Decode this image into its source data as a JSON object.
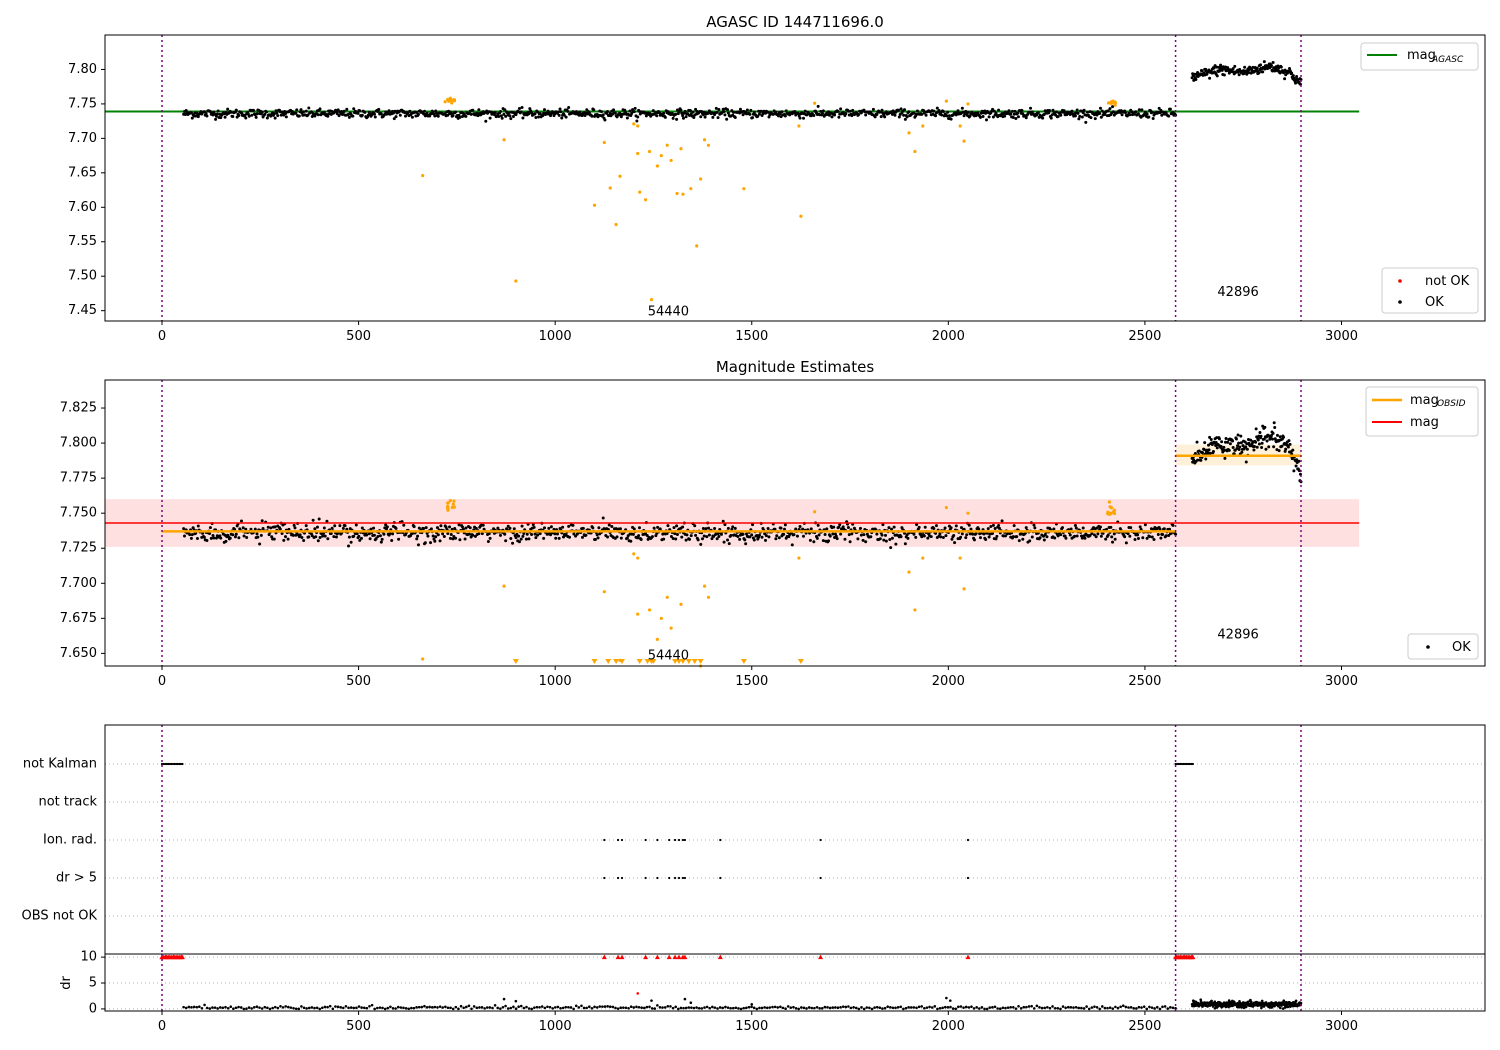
{
  "colors": {
    "ok": "#000000",
    "not_ok": "#ff0000",
    "excluded": "#ffa500",
    "mag_agasc": "#008000",
    "mag_obsid": "#ffa500",
    "mag": "#ff0000",
    "obsid_divider": "#800080",
    "band_mag": "#ffe0e0",
    "band_obsid": "#fff0d9"
  },
  "chart_data": [
    {
      "type": "scatter",
      "title": "AGASC ID 144711696.0",
      "xlim": [
        -145,
        3365
      ],
      "ylim": [
        7.435,
        7.85
      ],
      "xticks": [
        "0",
        "500",
        "1000",
        "1500",
        "2000",
        "2500",
        "3000"
      ],
      "xtick_values": [
        0,
        500,
        1000,
        1500,
        2000,
        2500,
        3000
      ],
      "yticks": [
        "7.45",
        "7.50",
        "7.55",
        "7.60",
        "7.65",
        "7.70",
        "7.75",
        "7.80"
      ],
      "ytick_values": [
        7.45,
        7.5,
        7.55,
        7.6,
        7.65,
        7.7,
        7.75,
        7.8
      ],
      "obsid_boundaries": [
        0,
        2578,
        2897
      ],
      "obsid_labels": [
        {
          "text": "54440",
          "x": 1288,
          "y": 7.448
        },
        {
          "text": "42896",
          "x": 2737,
          "y": 7.476
        }
      ],
      "mag_agasc_line": {
        "value": 7.739,
        "x_range": [
          -145,
          3045
        ]
      },
      "ok_segments": [
        {
          "x_range": [
            55,
            2578
          ],
          "level": 7.736,
          "scatter": 0.004,
          "n": 1150
        },
        {
          "x_range": [
            2620,
            2897
          ],
          "levels": [
            [
              2620,
              7.788
            ],
            [
              2690,
              7.8
            ],
            [
              2750,
              7.796
            ],
            [
              2820,
              7.805
            ],
            [
              2870,
              7.795
            ],
            [
              2897,
              7.778
            ]
          ],
          "scatter": 0.005,
          "n": 200
        }
      ],
      "ok_bumps": [
        {
          "x_range": [
            720,
            745
          ],
          "level": 7.755
        },
        {
          "x_range": [
            2405,
            2425
          ],
          "level": 7.752
        }
      ],
      "excluded_points": [
        {
          "x": 663,
          "y": 7.646
        },
        {
          "x": 870,
          "y": 7.698
        },
        {
          "x": 900,
          "y": 7.493
        },
        {
          "x": 1100,
          "y": 7.603
        },
        {
          "x": 1125,
          "y": 7.694
        },
        {
          "x": 1140,
          "y": 7.628
        },
        {
          "x": 1155,
          "y": 7.575
        },
        {
          "x": 1165,
          "y": 7.645
        },
        {
          "x": 1200,
          "y": 7.721
        },
        {
          "x": 1210,
          "y": 7.678
        },
        {
          "x": 1215,
          "y": 7.622
        },
        {
          "x": 1230,
          "y": 7.611
        },
        {
          "x": 1240,
          "y": 7.681
        },
        {
          "x": 1245,
          "y": 7.466
        },
        {
          "x": 1260,
          "y": 7.66
        },
        {
          "x": 1270,
          "y": 7.675
        },
        {
          "x": 1285,
          "y": 7.69
        },
        {
          "x": 1295,
          "y": 7.668
        },
        {
          "x": 1310,
          "y": 7.62
        },
        {
          "x": 1320,
          "y": 7.685
        },
        {
          "x": 1325,
          "y": 7.619
        },
        {
          "x": 1345,
          "y": 7.627
        },
        {
          "x": 1360,
          "y": 7.544
        },
        {
          "x": 1370,
          "y": 7.641
        },
        {
          "x": 1380,
          "y": 7.698
        },
        {
          "x": 1390,
          "y": 7.69
        },
        {
          "x": 1480,
          "y": 7.627
        },
        {
          "x": 1620,
          "y": 7.718
        },
        {
          "x": 1625,
          "y": 7.587
        },
        {
          "x": 1900,
          "y": 7.708
        },
        {
          "x": 1915,
          "y": 7.681
        },
        {
          "x": 1935,
          "y": 7.718
        },
        {
          "x": 2030,
          "y": 7.718
        },
        {
          "x": 2040,
          "y": 7.696
        },
        {
          "x": 1210,
          "y": 7.718
        },
        {
          "x": 1660,
          "y": 7.751
        },
        {
          "x": 2050,
          "y": 7.75
        },
        {
          "x": 1995,
          "y": 7.754
        }
      ],
      "legends": [
        {
          "position": "top-right",
          "entries": [
            {
              "label": "mag",
              "sub": "AGASC",
              "kind": "line",
              "color": "#008000"
            }
          ]
        },
        {
          "position": "bottom-right",
          "entries": [
            {
              "label": "not OK",
              "kind": "dot",
              "color": "#ff0000"
            },
            {
              "label": "OK",
              "kind": "dot",
              "color": "#000000"
            }
          ]
        }
      ]
    },
    {
      "type": "scatter",
      "title": "Magnitude Estimates",
      "xlim": [
        -145,
        3365
      ],
      "ylim": [
        7.641,
        7.845
      ],
      "xticks": [
        "0",
        "500",
        "1000",
        "1500",
        "2000",
        "2500",
        "3000"
      ],
      "xtick_values": [
        0,
        500,
        1000,
        1500,
        2000,
        2500,
        3000
      ],
      "yticks": [
        "7.650",
        "7.675",
        "7.700",
        "7.725",
        "7.750",
        "7.775",
        "7.800",
        "7.825"
      ],
      "ytick_values": [
        7.65,
        7.675,
        7.7,
        7.725,
        7.75,
        7.775,
        7.8,
        7.825
      ],
      "obsid_boundaries": [
        0,
        2578,
        2897
      ],
      "obsid_labels": [
        {
          "text": "54440",
          "x": 1288,
          "y": 7.648
        },
        {
          "text": "42896",
          "x": 2737,
          "y": 7.663
        }
      ],
      "mag_line": {
        "value": 7.743,
        "x_range": [
          -145,
          3045
        ],
        "band": [
          7.726,
          7.76
        ]
      },
      "mag_obsid_segments": [
        {
          "x_range": [
            0,
            2578
          ],
          "value": 7.737
        },
        {
          "x_range": [
            2578,
            2897
          ],
          "value": 7.791,
          "band": [
            7.784,
            7.799
          ]
        }
      ],
      "excluded_below_axis_x": [
        900,
        1100,
        1135,
        1155,
        1170,
        1215,
        1235,
        1245,
        1250,
        1305,
        1315,
        1325,
        1340,
        1355,
        1370,
        1480,
        1625
      ],
      "legends": [
        {
          "position": "top-right",
          "entries": [
            {
              "label": "mag",
              "sub": "OBSID",
              "kind": "line",
              "color": "#ffa500"
            },
            {
              "label": "mag",
              "kind": "line",
              "color": "#ff0000"
            }
          ]
        },
        {
          "position": "bottom-right",
          "entries": [
            {
              "label": "OK",
              "kind": "dot",
              "color": "#000000"
            }
          ]
        }
      ]
    },
    {
      "type": "scatter",
      "title": "",
      "xlim": [
        -145,
        3365
      ],
      "categories": [
        "not Kalman",
        "not track",
        "Ion. rad.",
        "dr > 5",
        "OBS not OK"
      ],
      "obsid_boundaries": [
        0,
        2578,
        2897
      ],
      "flag_points": [
        {
          "category": "not Kalman",
          "x_ranges": [
            [
              0,
              55
            ],
            [
              2578,
              2625
            ]
          ]
        },
        {
          "category": "Ion. rad.",
          "x": [
            1125,
            1160,
            1170,
            1230,
            1260,
            1290,
            1305,
            1315,
            1325,
            1330,
            1420,
            1675,
            2050
          ]
        },
        {
          "category": "dr > 5",
          "x": [
            1125,
            1160,
            1170,
            1230,
            1260,
            1290,
            1305,
            1315,
            1325,
            1330,
            1420,
            1675,
            2050
          ]
        }
      ]
    },
    {
      "type": "scatter",
      "title": "",
      "ylabel": "dr",
      "xlim": [
        -145,
        3365
      ],
      "ylim": [
        -0.4,
        10.6
      ],
      "xticks": [
        "0",
        "500",
        "1000",
        "1500",
        "2000",
        "2500",
        "3000"
      ],
      "xtick_values": [
        0,
        500,
        1000,
        1500,
        2000,
        2500,
        3000
      ],
      "yticks": [
        "0",
        "5",
        "10"
      ],
      "ytick_values": [
        0,
        5,
        10
      ],
      "obsid_boundaries": [
        0,
        2578,
        2897
      ],
      "capped_points_x": [
        0,
        10,
        20,
        30,
        40,
        50,
        1125,
        1160,
        1170,
        1230,
        1260,
        1290,
        1305,
        1315,
        1325,
        1330,
        1420,
        1675,
        2050,
        2580,
        2590,
        2600,
        2610,
        2620
      ],
      "cap_value": 10,
      "ok_segments": [
        {
          "x_range": [
            55,
            2578
          ],
          "level": 0.25,
          "scatter": 0.15
        },
        {
          "x_range": [
            2620,
            2897
          ],
          "level": 0.9,
          "scatter": 0.3
        }
      ],
      "outliers": [
        {
          "x": 870,
          "y": 1.9
        },
        {
          "x": 900,
          "y": 1.5
        },
        {
          "x": 1210,
          "y": 3.0
        },
        {
          "x": 1245,
          "y": 1.6
        },
        {
          "x": 1330,
          "y": 1.9
        },
        {
          "x": 1345,
          "y": 1.2
        },
        {
          "x": 1500,
          "y": 0.9
        },
        {
          "x": 1995,
          "y": 2.1
        },
        {
          "x": 2005,
          "y": 1.6
        }
      ]
    }
  ]
}
